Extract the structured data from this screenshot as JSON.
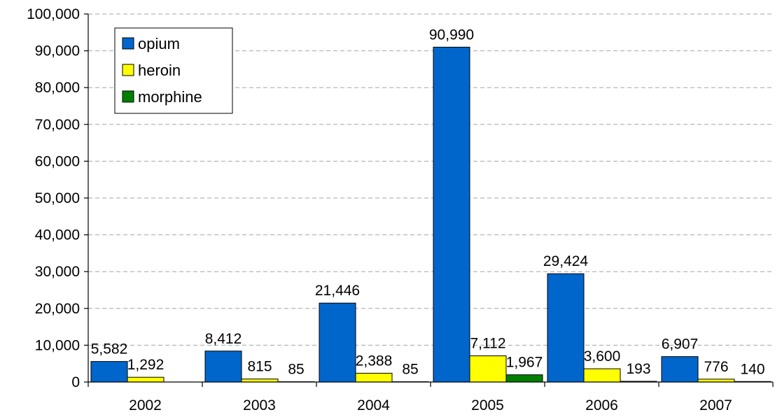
{
  "chart_data": {
    "type": "bar",
    "categories": [
      "2002",
      "2003",
      "2004",
      "2005",
      "2006",
      "2007"
    ],
    "series": [
      {
        "name": "opium",
        "color": "#0066cc",
        "values": [
          5582,
          8412,
          21446,
          90990,
          29424,
          6907
        ]
      },
      {
        "name": "heroin",
        "color": "#ffff00",
        "values": [
          1292,
          815,
          2388,
          7112,
          3600,
          776
        ]
      },
      {
        "name": "morphine",
        "color": "#008000",
        "values": [
          null,
          85,
          85,
          1967,
          193,
          140
        ]
      }
    ],
    "data_labels": [
      [
        "5,582",
        "8,412",
        "21,446",
        "90,990",
        "29,424",
        "6,907"
      ],
      [
        "1,292",
        "815",
        "2,388",
        "7,112",
        "3,600",
        "776"
      ],
      [
        "",
        "85",
        "85",
        "1,967",
        "193",
        "140"
      ]
    ],
    "yticks": [
      0,
      10000,
      20000,
      30000,
      40000,
      50000,
      60000,
      70000,
      80000,
      90000,
      100000
    ],
    "ytick_labels": [
      "0",
      "10,000",
      "20,000",
      "30,000",
      "40,000",
      "50,000",
      "60,000",
      "70,000",
      "80,000",
      "90,000",
      "100,000"
    ],
    "ylim": [
      0,
      100000
    ],
    "grid": true,
    "legend_position": "top-left",
    "title": "",
    "xlabel": "",
    "ylabel": ""
  }
}
